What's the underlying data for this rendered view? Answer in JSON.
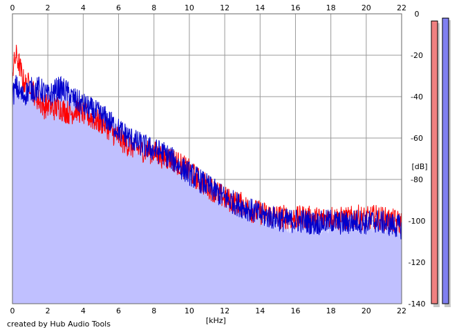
{
  "chart_data": {
    "type": "line",
    "xlabel": "[kHz]",
    "ylabel": "[dB]",
    "xlim": [
      0,
      22
    ],
    "ylim": [
      -140,
      0
    ],
    "x_ticks": [
      0,
      2,
      4,
      6,
      8,
      10,
      12,
      14,
      16,
      18,
      20,
      22
    ],
    "y_ticks": [
      0,
      -20,
      -40,
      -60,
      -80,
      -100,
      -120,
      -140
    ],
    "grid": true,
    "fill_color": "#c0c0ff",
    "series": [
      {
        "color": "#ff0000",
        "x": [
          0,
          0.2,
          0.4,
          0.6,
          0.8,
          1,
          1.2,
          1.5,
          1.8,
          2,
          2.3,
          2.6,
          3,
          3.3,
          3.6,
          4,
          4.4,
          4.8,
          5.2,
          5.6,
          6,
          6.5,
          7,
          7.5,
          8,
          8.5,
          9,
          9.5,
          10,
          10.5,
          11,
          11.5,
          12,
          12.5,
          13,
          13.5,
          14,
          14.5,
          15,
          15.5,
          16,
          16.5,
          17,
          17.5,
          18,
          18.5,
          19,
          19.5,
          20,
          20.5,
          21,
          21.5,
          22
        ],
        "y": [
          -28,
          -20,
          -25,
          -32,
          -35,
          -33,
          -38,
          -42,
          -45,
          -44,
          -46,
          -45,
          -47,
          -48,
          -46,
          -48,
          -50,
          -52,
          -53,
          -57,
          -60,
          -63,
          -65,
          -66,
          -67,
          -69,
          -70,
          -73,
          -76,
          -80,
          -83,
          -86,
          -89,
          -91,
          -92,
          -95,
          -96,
          -97,
          -98,
          -98,
          -99,
          -98,
          -99,
          -99,
          -98,
          -99,
          -99,
          -98,
          -99,
          -98,
          -99,
          -100,
          -101
        ]
      },
      {
        "color": "#0000cc",
        "x": [
          0,
          0.2,
          0.4,
          0.6,
          0.8,
          1,
          1.2,
          1.5,
          1.8,
          2,
          2.3,
          2.6,
          3,
          3.3,
          3.6,
          4,
          4.4,
          4.8,
          5.2,
          5.6,
          6,
          6.5,
          7,
          7.5,
          8,
          8.5,
          9,
          9.5,
          10,
          10.5,
          11,
          11.5,
          12,
          12.5,
          13,
          13.5,
          14,
          14.5,
          15,
          15.5,
          16,
          16.5,
          17,
          17.5,
          18,
          18.5,
          19,
          19.5,
          20,
          20.5,
          21,
          21.5,
          22
        ],
        "y": [
          -40,
          -35,
          -38,
          -40,
          -38,
          -36,
          -37,
          -36,
          -38,
          -40,
          -38,
          -36,
          -37,
          -40,
          -42,
          -44,
          -46,
          -48,
          -50,
          -53,
          -56,
          -59,
          -62,
          -64,
          -66,
          -67,
          -70,
          -74,
          -77,
          -80,
          -83,
          -86,
          -89,
          -91,
          -93,
          -95,
          -97,
          -98,
          -99,
          -100,
          -100,
          -100,
          -101,
          -101,
          -100,
          -101,
          -101,
          -100,
          -101,
          -100,
          -101,
          -102,
          -103
        ]
      }
    ]
  },
  "meters": [
    {
      "color": "#f08080",
      "level": 0.98
    },
    {
      "color": "#8080f0",
      "level": 0.99
    }
  ],
  "footer": {
    "text": "created by Hub Audio Tools"
  }
}
